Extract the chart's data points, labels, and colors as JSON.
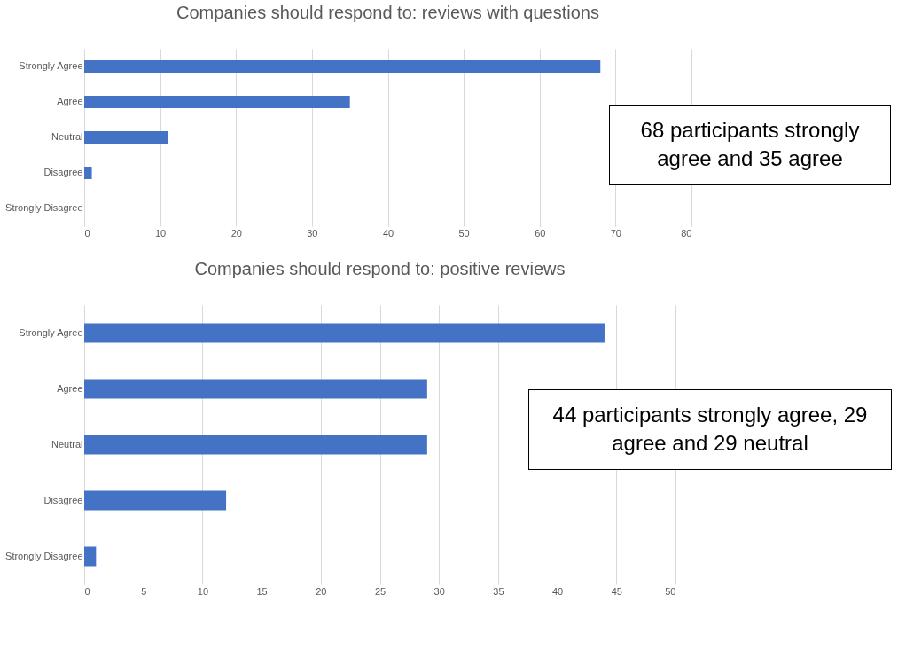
{
  "chart_data": [
    {
      "type": "bar",
      "orientation": "horizontal",
      "title": "Companies should respond to: reviews with questions",
      "categories": [
        "Strongly Agree",
        "Agree",
        "Neutral",
        "Disagree",
        "Strongly Disagree"
      ],
      "values": [
        68,
        35,
        11,
        1,
        0
      ],
      "color": "#4472c4",
      "xlim": [
        0,
        80
      ],
      "xticks": [
        0,
        10,
        20,
        30,
        40,
        50,
        60,
        70,
        80
      ],
      "grid": "x",
      "annotations": [
        "68 participants strongly agree and 35 agree"
      ]
    },
    {
      "type": "bar",
      "orientation": "horizontal",
      "title": "Companies should respond to: positive reviews",
      "categories": [
        "Strongly Agree",
        "Agree",
        "Neutral",
        "Disagree",
        "Strongly Disagree"
      ],
      "values": [
        44,
        29,
        29,
        12,
        1
      ],
      "color": "#4472c4",
      "xlim": [
        0,
        50
      ],
      "xticks": [
        0,
        5,
        10,
        15,
        20,
        25,
        30,
        35,
        40,
        45,
        50
      ],
      "grid": "x",
      "annotations": [
        "44 participants strongly agree, 29 agree and 29 neutral"
      ]
    }
  ]
}
